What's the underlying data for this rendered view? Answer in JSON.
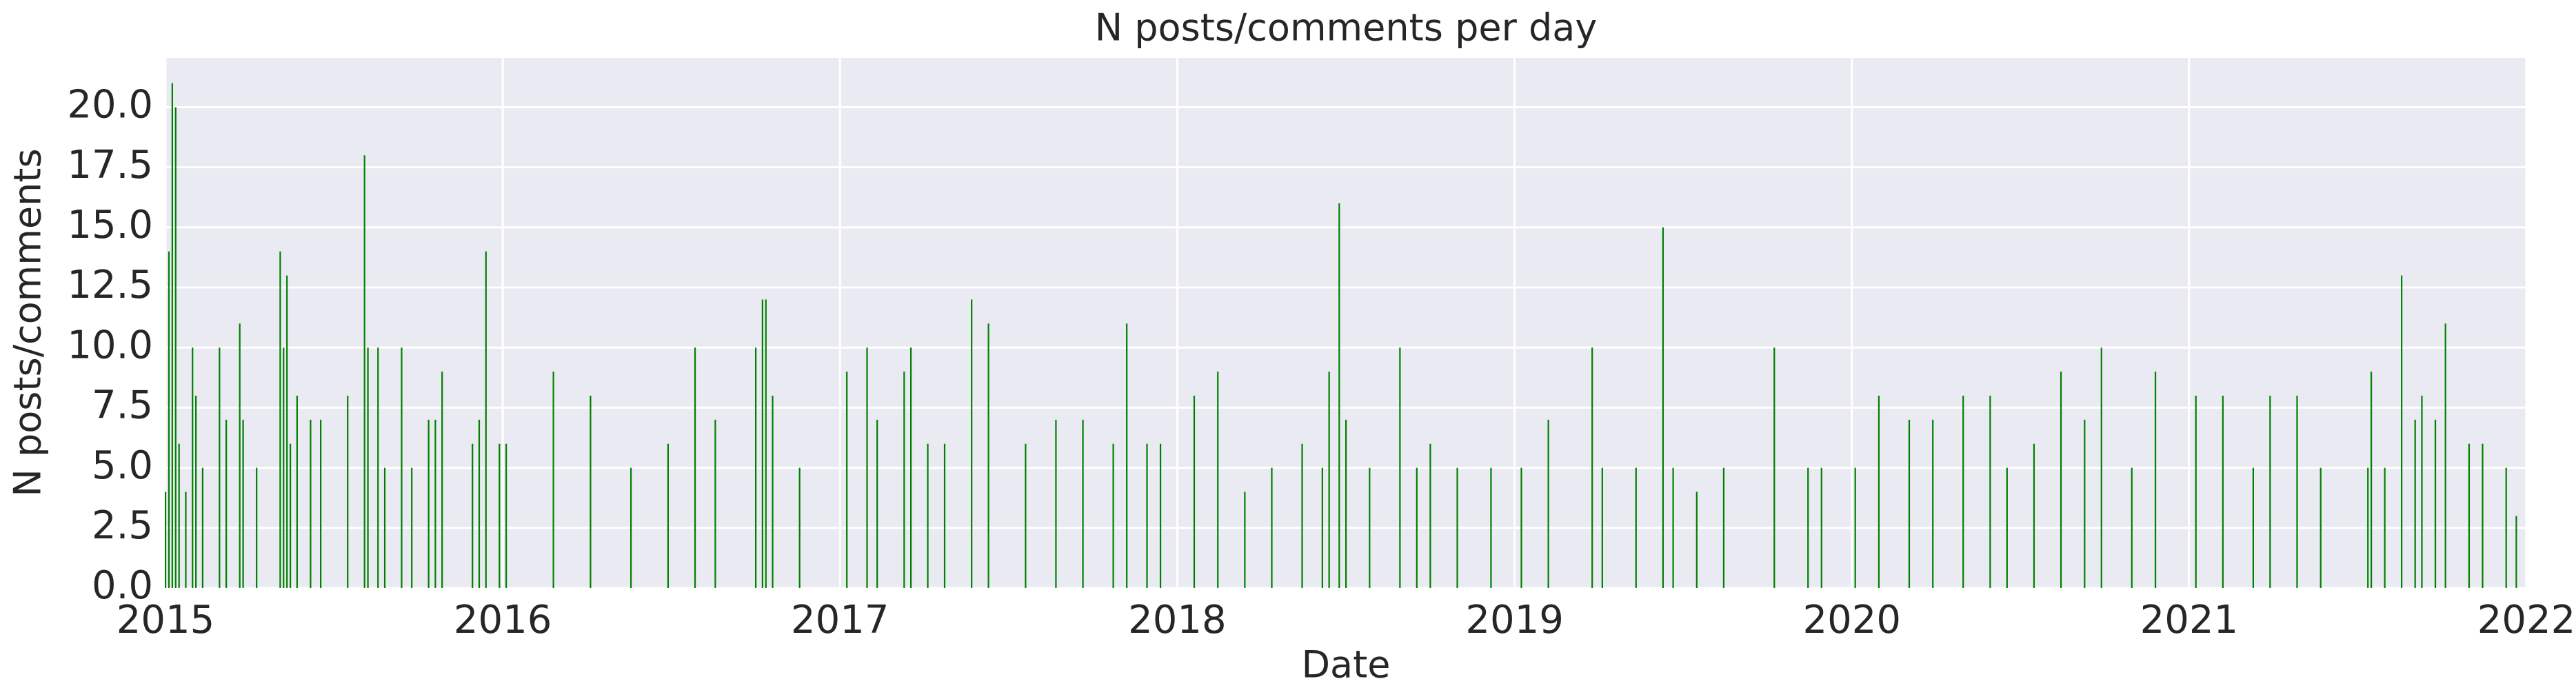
{
  "chart_data": {
    "type": "bar",
    "title": "N posts/comments per day",
    "x_label": "Date",
    "y_label": "N posts/comments",
    "color": "#008000",
    "grid": true,
    "xlim": [
      2015,
      2022
    ],
    "xticks": [
      2015,
      2016,
      2017,
      2018,
      2019,
      2020,
      2021,
      2022
    ],
    "ylim": [
      0,
      22.05
    ],
    "yticks": [
      {
        "value": 0,
        "label": "0.0"
      },
      {
        "value": 2.5,
        "label": "2.5"
      },
      {
        "value": 5,
        "label": "5.0"
      },
      {
        "value": 7.5,
        "label": "7.5"
      },
      {
        "value": 10,
        "label": "10.0"
      },
      {
        "value": 12.5,
        "label": "12.5"
      },
      {
        "value": 15,
        "label": "15.0"
      },
      {
        "value": 17.5,
        "label": "17.5"
      },
      {
        "value": 20,
        "label": "20.0"
      }
    ],
    "x": [
      2015.0,
      2015.01,
      2015.02,
      2015.03,
      2015.04,
      2015.06,
      2015.08,
      2015.09,
      2015.11,
      2015.16,
      2015.18,
      2015.22,
      2015.23,
      2015.27,
      2015.34,
      2015.35,
      2015.36,
      2015.37,
      2015.39,
      2015.43,
      2015.46,
      2015.54,
      2015.59,
      2015.6,
      2015.63,
      2015.65,
      2015.7,
      2015.73,
      2015.78,
      2015.8,
      2015.82,
      2015.91,
      2015.93,
      2015.95,
      2015.99,
      2016.01,
      2016.15,
      2016.26,
      2016.38,
      2016.49,
      2016.57,
      2016.63,
      2016.75,
      2016.77,
      2016.78,
      2016.8,
      2016.88,
      2017.02,
      2017.08,
      2017.11,
      2017.19,
      2017.21,
      2017.26,
      2017.31,
      2017.39,
      2017.44,
      2017.55,
      2017.64,
      2017.72,
      2017.81,
      2017.85,
      2017.91,
      2017.95,
      2018.05,
      2018.12,
      2018.2,
      2018.28,
      2018.37,
      2018.43,
      2018.45,
      2018.48,
      2018.5,
      2018.57,
      2018.66,
      2018.71,
      2018.75,
      2018.83,
      2018.93,
      2019.02,
      2019.1,
      2019.23,
      2019.26,
      2019.36,
      2019.44,
      2019.47,
      2019.54,
      2019.62,
      2019.77,
      2019.87,
      2019.91,
      2020.01,
      2020.08,
      2020.17,
      2020.24,
      2020.33,
      2020.41,
      2020.46,
      2020.54,
      2020.62,
      2020.69,
      2020.74,
      2020.83,
      2020.9,
      2021.02,
      2021.1,
      2021.19,
      2021.24,
      2021.32,
      2021.39,
      2021.53,
      2021.54,
      2021.58,
      2021.63,
      2021.67,
      2021.69,
      2021.73,
      2021.76,
      2021.83,
      2021.87,
      2021.94,
      2021.97
    ],
    "values": [
      4,
      14,
      21,
      20,
      6,
      4,
      10,
      8,
      5,
      10,
      7,
      11,
      7,
      5,
      14,
      10,
      13,
      6,
      8,
      7,
      7,
      8,
      18,
      10,
      10,
      5,
      10,
      5,
      7,
      7,
      9,
      6,
      7,
      14,
      6,
      6,
      9,
      8,
      5,
      6,
      10,
      7,
      10,
      12,
      12,
      8,
      5,
      9,
      10,
      7,
      9,
      10,
      6,
      6,
      12,
      11,
      6,
      7,
      7,
      6,
      11,
      6,
      6,
      8,
      9,
      4,
      5,
      6,
      5,
      9,
      16,
      7,
      5,
      10,
      5,
      6,
      5,
      5,
      5,
      7,
      10,
      5,
      5,
      15,
      5,
      4,
      5,
      10,
      5,
      5,
      5,
      8,
      7,
      7,
      8,
      8,
      5,
      6,
      9,
      7,
      10,
      5,
      9,
      8,
      8,
      5,
      8,
      8,
      5,
      5,
      9,
      5,
      13,
      7,
      8,
      7,
      11,
      6,
      6,
      5,
      3
    ]
  }
}
